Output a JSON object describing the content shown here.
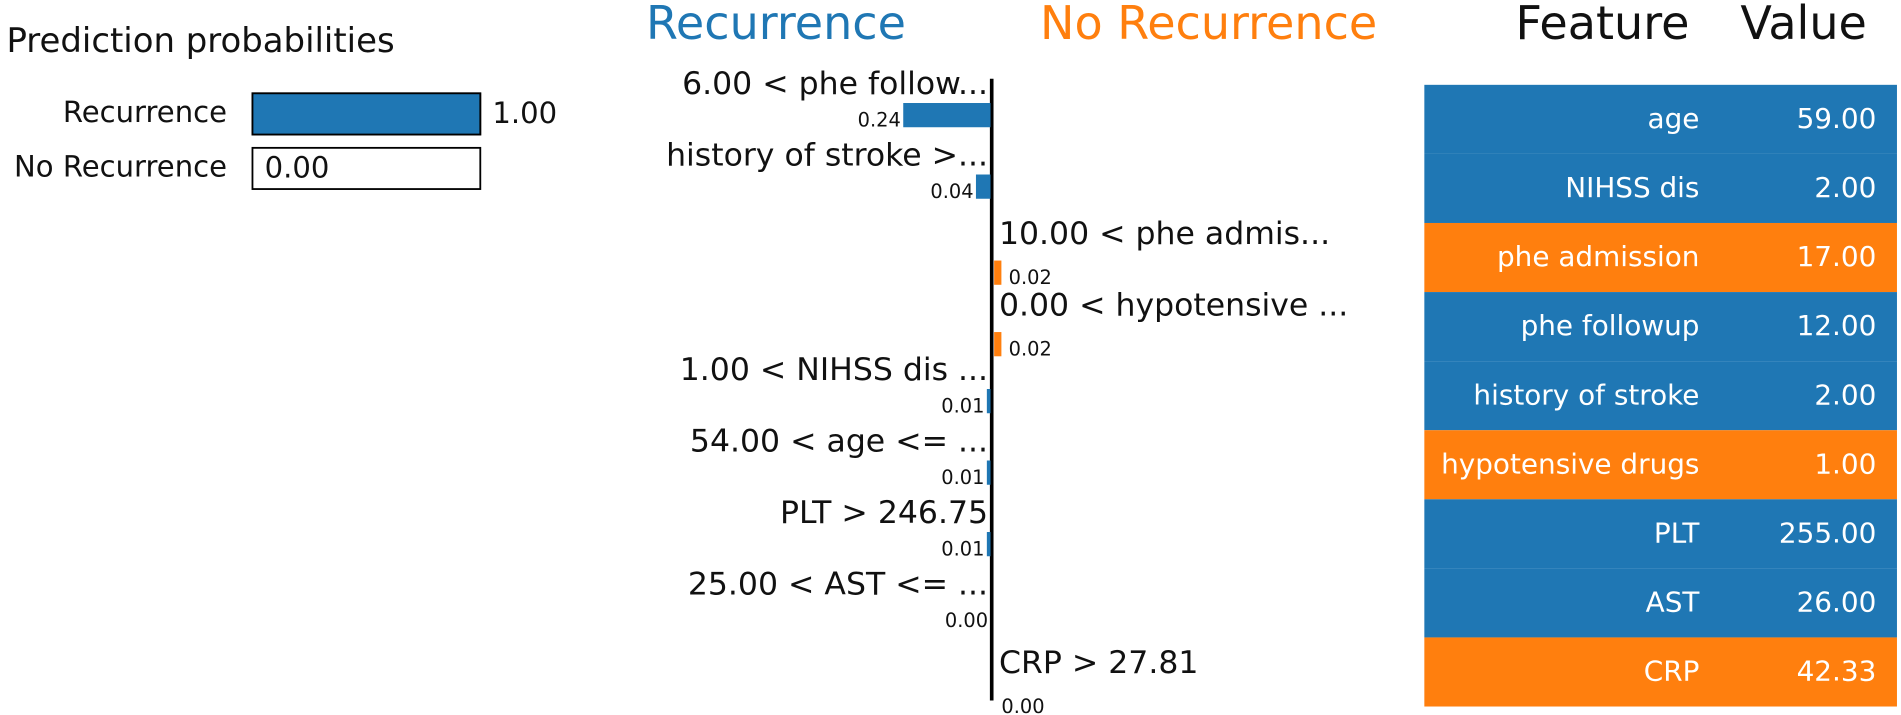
{
  "chart_data": [
    {
      "type": "probability-bar",
      "title": "Prediction probabilities",
      "categories": [
        "Recurrence",
        "No Recurrence"
      ],
      "values": [
        1.0,
        0.0
      ],
      "value_labels": [
        "1.00",
        "0.00"
      ],
      "colors": [
        "#1f77b4",
        "#ff7f0e"
      ],
      "xlim": [
        0,
        1
      ]
    },
    {
      "type": "diverging-bar",
      "classes": [
        {
          "name": "Recurrence",
          "color": "#1f77b4"
        },
        {
          "name": "No Recurrence",
          "color": "#ff7f0e"
        }
      ],
      "categories": [
        "6.00 < phe follow...",
        "history of stroke >...",
        "10.00 < phe admis...",
        "0.00 < hypotensive ...",
        "1.00 < NIHSS dis ...",
        "54.00 < age <= ...",
        "PLT > 246.75",
        "25.00 < AST <= ...",
        "CRP > 27.81"
      ],
      "values": [
        0.24,
        0.04,
        0.02,
        0.02,
        0.01,
        0.01,
        0.01,
        0.0,
        0.0
      ],
      "value_labels": [
        "0.24",
        "0.04",
        "0.02",
        "0.02",
        "0.01",
        "0.01",
        "0.01",
        "0.00",
        "0.00"
      ],
      "sides": [
        0,
        0,
        1,
        1,
        0,
        0,
        0,
        0,
        1
      ]
    }
  ],
  "table": {
    "header": [
      "Feature",
      "Value"
    ],
    "rows": [
      [
        "age",
        "59.00"
      ],
      [
        "NIHSS dis",
        "2.00"
      ],
      [
        "phe admission",
        "17.00"
      ],
      [
        "phe followup",
        "12.00"
      ],
      [
        "history of stroke",
        "2.00"
      ],
      [
        "hypotensive drugs",
        "1.00"
      ],
      [
        "PLT",
        "255.00"
      ],
      [
        "AST",
        "26.00"
      ],
      [
        "CRP",
        "42.33"
      ]
    ],
    "row_classes": [
      0,
      0,
      1,
      0,
      0,
      1,
      0,
      0,
      1
    ]
  }
}
